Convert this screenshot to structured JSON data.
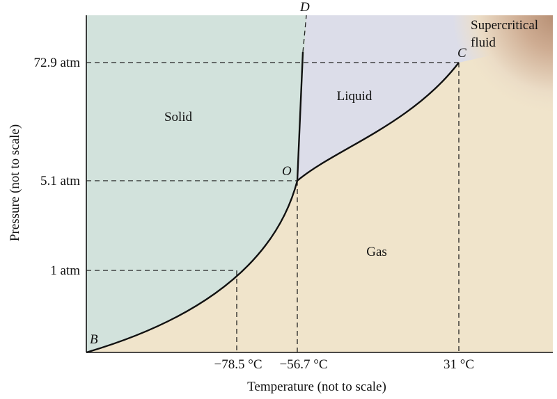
{
  "diagram": {
    "axes": {
      "x_label": "Temperature (not to scale)",
      "y_label": "Pressure (not to scale)"
    },
    "y_ticks": [
      "72.9 atm",
      "5.1 atm",
      "1 atm"
    ],
    "x_ticks": [
      "−78.5 °C",
      "−56.7 °C",
      "31 °C"
    ],
    "regions": {
      "solid": "Solid",
      "liquid": "Liquid",
      "gas": "Gas",
      "supercritical_line1": "Supercritical",
      "supercritical_line2": "fluid"
    },
    "points": {
      "b": "B",
      "c": "C",
      "d": "D",
      "o": "O"
    },
    "colors": {
      "solid": "#d2e2dc",
      "liquid": "#dcdde9",
      "gas": "#f0e4cb",
      "supercritical": "#c9a58a"
    }
  }
}
